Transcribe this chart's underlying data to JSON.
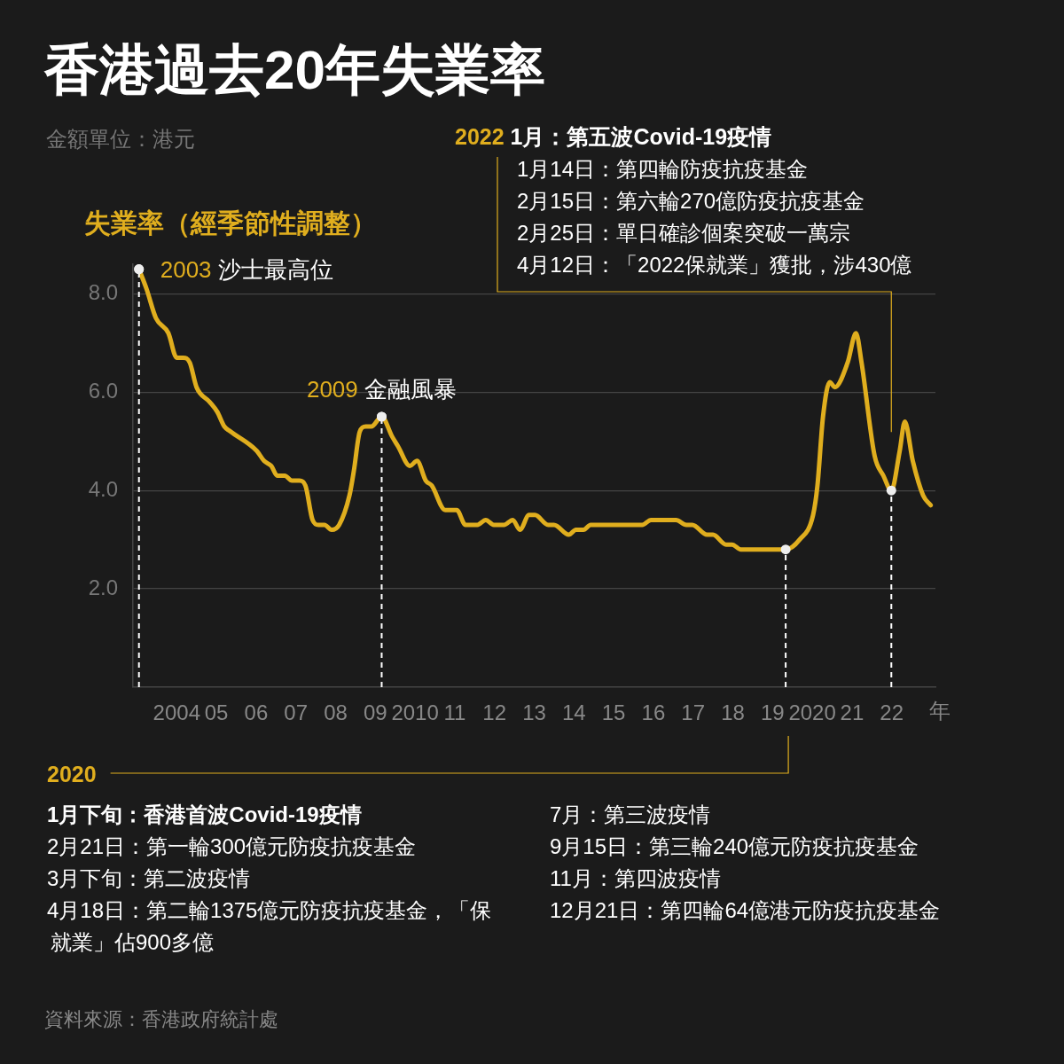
{
  "chart_data": {
    "type": "line",
    "title": "香港過去20年失業率",
    "subtitle": "金額單位：港元",
    "ylabel": "失業率（經季節性調整）",
    "xlabel": "年",
    "x": [
      2003.05,
      2003.24,
      2003.48,
      2003.79,
      2004.0,
      2004.16,
      2004.33,
      2004.5,
      2004.83,
      2005.02,
      2005.2,
      2005.35,
      2006.02,
      2006.2,
      2006.38,
      2006.53,
      2006.72,
      2006.9,
      2007.09,
      2007.24,
      2007.42,
      2007.57,
      2007.72,
      2007.9,
      2008.09,
      2008.35,
      2008.46,
      2008.61,
      2008.76,
      2008.9,
      2009.16,
      2009.42,
      2009.57,
      2009.87,
      2010.05,
      2010.27,
      2010.42,
      2010.76,
      2011.05,
      2011.27,
      2011.57,
      2011.78,
      2011.98,
      2012.24,
      2012.46,
      2012.64,
      2012.87,
      2013.02,
      2013.35,
      2013.5,
      2013.87,
      2014.05,
      2014.24,
      2014.42,
      2015.72,
      2015.94,
      2016.57,
      2016.83,
      2016.98,
      2017.35,
      2017.5,
      2017.83,
      2017.98,
      2018.2,
      2019.33,
      2019.68,
      2020.02,
      2020.13,
      2020.27,
      2020.44,
      2020.57,
      2020.89,
      2021.1,
      2021.24,
      2021.57,
      2021.79,
      2021.99,
      2022.2,
      2022.33,
      2022.53,
      2022.79,
      2022.98
    ],
    "series": [
      {
        "color": "#e0ae1e",
        "values": [
          8.5,
          8.1,
          7.5,
          7.2,
          6.7,
          6.7,
          6.6,
          6.1,
          5.8,
          5.6,
          5.3,
          5.2,
          4.8,
          4.6,
          4.5,
          4.3,
          4.3,
          4.2,
          4.2,
          4.1,
          3.4,
          3.3,
          3.3,
          3.2,
          3.3,
          3.9,
          4.4,
          5.2,
          5.3,
          5.3,
          5.5,
          5.1,
          4.9,
          4.5,
          4.6,
          4.2,
          4.1,
          3.6,
          3.6,
          3.3,
          3.3,
          3.4,
          3.3,
          3.3,
          3.4,
          3.2,
          3.5,
          3.5,
          3.3,
          3.3,
          3.1,
          3.2,
          3.2,
          3.3,
          3.3,
          3.4,
          3.4,
          3.3,
          3.3,
          3.1,
          3.1,
          2.9,
          2.9,
          2.8,
          2.8,
          3.0,
          3.5,
          4.1,
          5.5,
          6.2,
          6.1,
          6.6,
          7.2,
          6.6,
          4.7,
          4.3,
          4.0,
          4.8,
          5.4,
          4.6,
          3.9,
          3.7
        ]
      }
    ],
    "xlim": [
      2002.9,
      2023.1
    ],
    "xticks": [
      {
        "value": 2004,
        "label": "2004"
      },
      {
        "value": 2005,
        "label": "05"
      },
      {
        "value": 2006,
        "label": "06"
      },
      {
        "value": 2007,
        "label": "07"
      },
      {
        "value": 2008,
        "label": "08"
      },
      {
        "value": 2009,
        "label": "09"
      },
      {
        "value": 2010,
        "label": "2010"
      },
      {
        "value": 2011,
        "label": "11"
      },
      {
        "value": 2012,
        "label": "12"
      },
      {
        "value": 2013,
        "label": "13"
      },
      {
        "value": 2014,
        "label": "14"
      },
      {
        "value": 2015,
        "label": "15"
      },
      {
        "value": 2016,
        "label": "16"
      },
      {
        "value": 2017,
        "label": "17"
      },
      {
        "value": 2018,
        "label": "18"
      },
      {
        "value": 2019,
        "label": "19"
      },
      {
        "value": 2020,
        "label": "2020"
      },
      {
        "value": 2021,
        "label": "21"
      },
      {
        "value": 2022,
        "label": "22"
      }
    ],
    "ylim": [
      0,
      8.6
    ],
    "yticks": [
      {
        "value": 2,
        "label": "2.0"
      },
      {
        "value": 4,
        "label": "4.0"
      },
      {
        "value": 6,
        "label": "6.0"
      },
      {
        "value": 8,
        "label": "8.0"
      }
    ],
    "grid": "y",
    "legend": false,
    "marker": "none",
    "line_style": "solid",
    "ref_lines": [
      {
        "axis": "x",
        "value": 2003.05,
        "color": "#ffffff",
        "line_style": "dashed"
      },
      {
        "axis": "x",
        "value": 2009.16,
        "color": "#ffffff",
        "line_style": "dashed"
      },
      {
        "axis": "x",
        "value": 2019.33,
        "color": "#ffffff",
        "line_style": "dashed"
      },
      {
        "axis": "x",
        "value": 2021.99,
        "color": "#ffffff",
        "line_style": "dashed"
      }
    ],
    "annotations": [
      "資料來源：香港政府統計處",
      {
        "text": "2003 沙士最高位",
        "x": 2003.05,
        "y": 8.5
      },
      {
        "text": "2009 金融風暴",
        "x": 2009.16,
        "y": 5.5
      },
      "2020",
      "1月下旬：香港首波Covid-19疫情",
      "2月21日：第一輪300億元防疫抗疫基金",
      "3月下旬：第二波疫情",
      "4月18日：第二輪1375億元防疫抗疫基金，「保就業」佔900多億",
      "7月：第三波疫情",
      "9月15日：第三輪240億元防疫抗疫基金",
      "11月：第四波疫情",
      "12月21日：第四輪64億港元防疫抗疫基金",
      "2022 1月：第五波Covid-19疫情",
      "1月14日：第四輪防疫抗疫基金",
      "2月15日：第六輪270億防疫抗疫基金",
      "2月25日：單日確診個案突破一萬宗",
      "4月12日：「2022保就業」獲批，涉430億"
    ]
  }
}
